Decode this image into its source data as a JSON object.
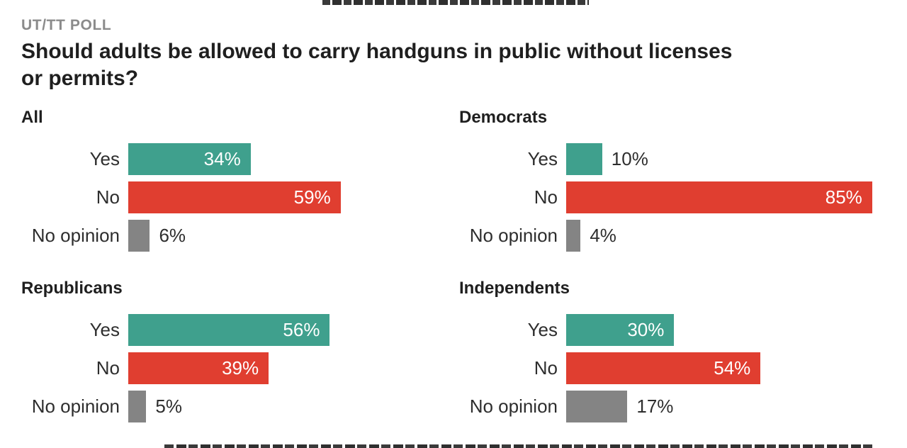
{
  "kicker": "UT/TT POLL",
  "title": "Should adults be allowed to carry handguns in public without licenses or permits?",
  "title_lines": [
    "Should adults be allowed to carry handguns in public without licenses",
    "or permits?"
  ],
  "colors": {
    "yes": "#3FA08D",
    "no": "#E03E30",
    "no_opinion": "#848484",
    "heading_text": "#1F1F1F",
    "kicker_text": "#8B8B8B",
    "label_text": "#2E2E2E",
    "value_inside_text": "#FFFFFF"
  },
  "chart_data": {
    "type": "bar",
    "orientation": "horizontal",
    "layout": "2x2 small multiples",
    "title": "Should adults be allowed to carry handguns in public without licenses or permits?",
    "kicker": "UT/TT POLL",
    "categories": [
      "Yes",
      "No",
      "No opinion"
    ],
    "series": [
      {
        "name": "All",
        "values": [
          34,
          59,
          6
        ]
      },
      {
        "name": "Democrats",
        "values": [
          10,
          85,
          4
        ]
      },
      {
        "name": "Republicans",
        "values": [
          56,
          39,
          5
        ]
      },
      {
        "name": "Independents",
        "values": [
          30,
          54,
          17
        ]
      }
    ],
    "unit": "percent",
    "xlim": [
      0,
      100
    ],
    "grid": false,
    "legend": false
  },
  "panels": [
    {
      "header": "All",
      "rows": [
        {
          "label": "Yes",
          "value": 34,
          "display": "34%",
          "color": "yes",
          "value_inside": true
        },
        {
          "label": "No",
          "value": 59,
          "display": "59%",
          "color": "no",
          "value_inside": true
        },
        {
          "label": "No opinion",
          "value": 6,
          "display": "6%",
          "color": "no_opinion",
          "value_inside": false
        }
      ]
    },
    {
      "header": "Democrats",
      "rows": [
        {
          "label": "Yes",
          "value": 10,
          "display": "10%",
          "color": "yes",
          "value_inside": false
        },
        {
          "label": "No",
          "value": 85,
          "display": "85%",
          "color": "no",
          "value_inside": true
        },
        {
          "label": "No opinion",
          "value": 4,
          "display": "4%",
          "color": "no_opinion",
          "value_inside": false
        }
      ]
    },
    {
      "header": "Republicans",
      "rows": [
        {
          "label": "Yes",
          "value": 56,
          "display": "56%",
          "color": "yes",
          "value_inside": true
        },
        {
          "label": "No",
          "value": 39,
          "display": "39%",
          "color": "no",
          "value_inside": true
        },
        {
          "label": "No opinion",
          "value": 5,
          "display": "5%",
          "color": "no_opinion",
          "value_inside": false
        }
      ]
    },
    {
      "header": "Independents",
      "rows": [
        {
          "label": "Yes",
          "value": 30,
          "display": "30%",
          "color": "yes",
          "value_inside": true
        },
        {
          "label": "No",
          "value": 54,
          "display": "54%",
          "color": "no",
          "value_inside": true
        },
        {
          "label": "No opinion",
          "value": 17,
          "display": "17%",
          "color": "no_opinion",
          "value_inside": false
        }
      ]
    }
  ]
}
